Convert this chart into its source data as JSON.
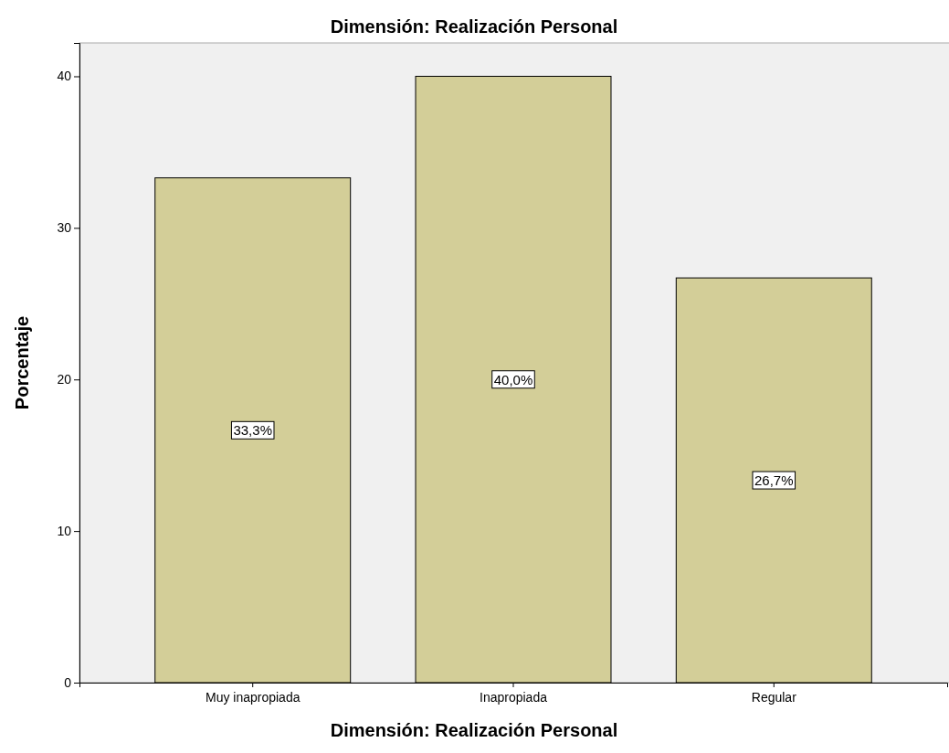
{
  "chart_data": {
    "type": "bar",
    "title": "Dimensión: Realización Personal",
    "xlabel": "Dimensión: Realización Personal",
    "ylabel": "Porcentaje",
    "categories": [
      "Muy inapropiada",
      "Inapropiada",
      "Regular"
    ],
    "values": [
      33.3,
      40.0,
      26.7
    ],
    "value_labels": [
      "33,3%",
      "40,0%",
      "26,7%"
    ],
    "color": "#d3ce98",
    "ylim": [
      0,
      42.2
    ],
    "yticks": [
      0,
      10,
      20,
      30,
      40
    ],
    "grid": false
  }
}
